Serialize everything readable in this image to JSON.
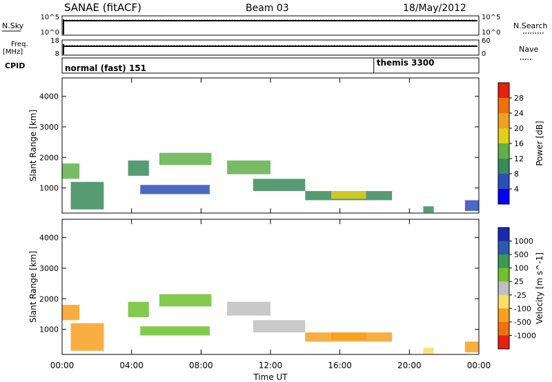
{
  "header": {
    "title": "SANAE (fitACF)",
    "beam": "Beam 03",
    "date": "18/May/2012"
  },
  "strips": {
    "nsky_label": "N.Sky",
    "nsky_ticks": [
      "10^5",
      "10^0"
    ],
    "nsearch_label": "N.Search",
    "nsearch_ticks": [
      "10^5",
      "10^0"
    ],
    "freq_label": "Freq.",
    "freq_unit": "[MHz]",
    "freq_ticks": [
      "18",
      "8"
    ],
    "nave_label": "Nave",
    "nave_ticks": [
      "60",
      "0"
    ],
    "cpid_label": "CPID",
    "cpid_mode1": "normal (fast) 151",
    "cpid_mode2": "themis 3300",
    "cpid_switch_hour": 17.95
  },
  "colors": {
    "power": [
      "#0000ff",
      "#2a4fb8",
      "#3a8a5a",
      "#60b04a",
      "#e0d018",
      "#f0a020",
      "#f07010",
      "#e82010"
    ],
    "velocity": [
      "#1a2ab0",
      "#2a5ab0",
      "#3a9a50",
      "#70c030",
      "#c0c0c0",
      "#f8e060",
      "#f8a020",
      "#f07010",
      "#e82010"
    ]
  },
  "chart_data": [
    {
      "type": "heatmap",
      "name": "power",
      "ylabel": "Slant Range [km]",
      "xlabel": "",
      "colorbar_label": "Power [dB]",
      "colorbar_ticks": [
        "28",
        "24",
        "20",
        "16",
        "12",
        "8",
        "4"
      ],
      "xlim": [
        0,
        24
      ],
      "ylim": [
        180,
        4600
      ],
      "yticks": [
        1000,
        2000,
        3000,
        4000
      ],
      "bands": [
        {
          "x0": 0.0,
          "x1": 1.0,
          "y0": 1300,
          "y1": 1800,
          "level": 3
        },
        {
          "x0": 0.5,
          "x1": 2.4,
          "y0": 300,
          "y1": 1200,
          "level": 2
        },
        {
          "x0": 3.8,
          "x1": 5.0,
          "y0": 1400,
          "y1": 1900,
          "level": 2
        },
        {
          "x0": 4.5,
          "x1": 8.5,
          "y0": 800,
          "y1": 1100,
          "level": 1
        },
        {
          "x0": 5.6,
          "x1": 8.6,
          "y0": 1750,
          "y1": 2150,
          "level": 3
        },
        {
          "x0": 9.5,
          "x1": 12.0,
          "y0": 1450,
          "y1": 1900,
          "level": 3
        },
        {
          "x0": 11.0,
          "x1": 14.0,
          "y0": 900,
          "y1": 1300,
          "level": 2
        },
        {
          "x0": 14.0,
          "x1": 19.0,
          "y0": 600,
          "y1": 900,
          "level": 2
        },
        {
          "x0": 15.5,
          "x1": 17.5,
          "y0": 650,
          "y1": 900,
          "level": 4
        },
        {
          "x0": 20.8,
          "x1": 21.4,
          "y0": 200,
          "y1": 400,
          "level": 2
        },
        {
          "x0": 23.2,
          "x1": 24.0,
          "y0": 250,
          "y1": 600,
          "level": 1
        }
      ]
    },
    {
      "type": "heatmap",
      "name": "velocity",
      "ylabel": "Slant Range [km]",
      "xlabel": "Time UT",
      "colorbar_label": "Velocity [m s^-1]",
      "colorbar_ticks": [
        "1000",
        "500",
        "100",
        "25",
        "-25",
        "-100",
        "-500",
        "-1000"
      ],
      "xlim": [
        0,
        24
      ],
      "ylim": [
        180,
        4600
      ],
      "xticks": [
        "00:00",
        "04:00",
        "08:00",
        "12:00",
        "16:00",
        "20:00",
        "00:00"
      ],
      "xtick_hours": [
        0,
        4,
        8,
        12,
        16,
        20,
        24
      ],
      "yticks": [
        1000,
        2000,
        3000,
        4000
      ],
      "bands": [
        {
          "x0": 0.0,
          "x1": 1.0,
          "y0": 1300,
          "y1": 1800,
          "level": 6
        },
        {
          "x0": 0.5,
          "x1": 2.4,
          "y0": 300,
          "y1": 1200,
          "level": 6
        },
        {
          "x0": 3.8,
          "x1": 5.0,
          "y0": 1400,
          "y1": 1900,
          "level": 3
        },
        {
          "x0": 4.5,
          "x1": 8.5,
          "y0": 800,
          "y1": 1100,
          "level": 3
        },
        {
          "x0": 5.6,
          "x1": 8.6,
          "y0": 1750,
          "y1": 2150,
          "level": 3
        },
        {
          "x0": 9.5,
          "x1": 12.0,
          "y0": 1450,
          "y1": 1900,
          "level": 4
        },
        {
          "x0": 11.0,
          "x1": 14.0,
          "y0": 900,
          "y1": 1300,
          "level": 4
        },
        {
          "x0": 14.0,
          "x1": 19.0,
          "y0": 600,
          "y1": 900,
          "level": 6
        },
        {
          "x0": 15.5,
          "x1": 17.5,
          "y0": 650,
          "y1": 900,
          "level": 6
        },
        {
          "x0": 20.8,
          "x1": 21.4,
          "y0": 200,
          "y1": 400,
          "level": 5
        },
        {
          "x0": 23.2,
          "x1": 24.0,
          "y0": 250,
          "y1": 600,
          "level": 6
        }
      ]
    }
  ]
}
